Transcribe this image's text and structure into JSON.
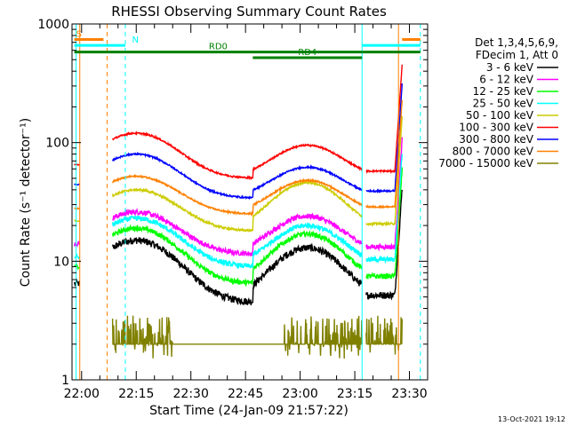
{
  "chart_data": {
    "type": "line",
    "title": "RHESSI Observing Summary Count Rates",
    "xlabel": "Start Time (24-Jan-09 21:57:22)",
    "ylabel": "Count Rate (s⁻¹ detector⁻¹)",
    "y_scale": "log",
    "ylim": [
      1,
      1000
    ],
    "xlim": [
      "21:57:22",
      "23:35:00"
    ],
    "x_ticks": [
      "22:00",
      "22:15",
      "22:30",
      "22:45",
      "23:00",
      "23:15",
      "23:30"
    ],
    "y_ticks": [
      {
        "value": 1,
        "label": "1"
      },
      {
        "value": 10,
        "label": "10"
      },
      {
        "value": 100,
        "label": "100"
      },
      {
        "value": 1000,
        "label": "1000"
      }
    ],
    "legend": {
      "placement": "right",
      "header": [
        "Det 1,3,4,5,6,9,",
        "FDecim 1, Att 0"
      ]
    },
    "series": [
      {
        "name": "3 - 6 keV",
        "color": "#000000",
        "base": 4.5,
        "peak1": 15,
        "peak2": 13,
        "noise": 0.14,
        "pre": 6.5
      },
      {
        "name": "6 - 12 keV",
        "color": "#ff00ff",
        "base": 11.5,
        "peak1": 26,
        "peak2": 24,
        "noise": 0.1,
        "pre": 14
      },
      {
        "name": "12 - 25 keV",
        "color": "#00ff00",
        "base": 6.5,
        "peak1": 19,
        "peak2": 17,
        "noise": 0.1,
        "pre": 9
      },
      {
        "name": "25 - 50 keV",
        "color": "#00ffff",
        "base": 9,
        "peak1": 23,
        "peak2": 20,
        "noise": 0.1,
        "pre": 11
      },
      {
        "name": "50 - 100 keV",
        "color": "#cccc00",
        "base": 18,
        "peak1": 40,
        "peak2": 46,
        "noise": 0.04,
        "pre": 22
      },
      {
        "name": "100 - 300 keV",
        "color": "#ff0000",
        "base": 50,
        "peak1": 120,
        "peak2": 95,
        "noise": 0.03,
        "pre": 65
      },
      {
        "name": "300 - 800 keV",
        "color": "#0000ff",
        "base": 34,
        "peak1": 80,
        "peak2": 62,
        "noise": 0.03,
        "pre": 44
      },
      {
        "name": "800 - 7000 keV",
        "color": "#ff8000",
        "base": 25,
        "peak1": 52,
        "peak2": 48,
        "noise": 0.03,
        "pre": 28
      },
      {
        "name": "7000 - 15000 keV",
        "color": "#808000",
        "base": 2,
        "peak1": 3,
        "peak2": 3,
        "noise": 0.3,
        "pre": 0
      }
    ],
    "gaps": [
      {
        "start": "21:58:30",
        "end": "22:08:30"
      },
      {
        "start": "23:17:00",
        "end": "23:18:00"
      }
    ],
    "vertical_lines": [
      {
        "time": "21:58:30",
        "color": "#00ffff",
        "style": "solid"
      },
      {
        "time": "21:59:30",
        "color": "#ff8000",
        "style": "solid"
      },
      {
        "time": "22:07:00",
        "color": "#ff8000",
        "style": "dashed"
      },
      {
        "time": "22:12:00",
        "color": "#00ffff",
        "style": "dashed"
      },
      {
        "time": "23:17:00",
        "color": "#00ffff",
        "style": "solid"
      },
      {
        "time": "23:27:00",
        "color": "#ff8000",
        "style": "solid"
      },
      {
        "time": "23:33:00",
        "color": "#00ffff",
        "style": "dashed"
      }
    ],
    "flag_bars": [
      {
        "label": "S",
        "color": "#ff8000",
        "y": 740,
        "start": "21:58:00",
        "end": "22:06:00"
      },
      {
        "label": "",
        "color": "#ff8000",
        "y": 740,
        "start": "23:28:00",
        "end": "23:33:00"
      },
      {
        "label": "N",
        "color": "#00ffff",
        "y": 660,
        "start": "21:58:00",
        "end": "22:12:00"
      },
      {
        "label": "",
        "color": "#00ffff",
        "y": 660,
        "start": "23:17:00",
        "end": "23:33:00"
      },
      {
        "label": "RD0",
        "color": "#008000",
        "y": 580,
        "start": "21:58:00",
        "end": "23:17:00"
      },
      {
        "label": "",
        "color": "#008000",
        "y": 580,
        "start": "23:17:00",
        "end": "23:33:00"
      },
      {
        "label": "RD4",
        "color": "#008000",
        "y": 520,
        "start": "22:47:00",
        "end": "23:17:00"
      }
    ],
    "timestamp": "13-Oct-2021 19:12"
  }
}
